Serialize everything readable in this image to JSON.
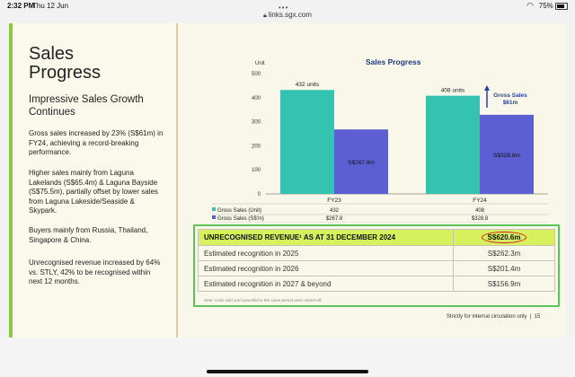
{
  "status": {
    "time": "2:32 PM",
    "date": "Thu 12 Jun",
    "battery": "75%",
    "url": "links.sgx.com"
  },
  "left": {
    "title_line1": "Sales",
    "title_line2": "Progress",
    "subtitle": "Impressive Sales Growth Continues",
    "paragraphs": [
      "Gross sales increased by 23% (S$61m) in FY24, achieving a record-breaking performance.",
      "Higher sales mainly from Laguna Lakelands (S$65.4m) & Laguna Bayside (S$75.5m), partially offset by lower sales from Laguna Lakeside/Seaside & Skypark.",
      "Buyers mainly from Russia, Thailand, Singapore & China.",
      "Unrecognised revenue increased by 64% vs. STLY, 42% to be recognised within next 12 months."
    ]
  },
  "chart_data": {
    "type": "bar",
    "title": "Sales Progress",
    "ylabel": "Unit",
    "ylim": [
      0,
      500
    ],
    "yticks": [
      "0",
      "100",
      "200",
      "300",
      "400",
      "500"
    ],
    "categories": [
      "FY23",
      "FY24"
    ],
    "series": [
      {
        "name": "Gross Sales (Unit)",
        "values": [
          432,
          408
        ],
        "labels": [
          "432 units",
          "408 units"
        ],
        "table": [
          "432",
          "408"
        ],
        "color": "#33c3b0"
      },
      {
        "name": "Gross Sales (S$'m)",
        "values": [
          267.8,
          328.8
        ],
        "labels": [
          "S$267.8m",
          "S$328.8m"
        ],
        "table": [
          "$267.8",
          "$328.8"
        ],
        "color": "#5b5fd1"
      }
    ],
    "annotation": {
      "line1": "Gross Sales",
      "line2": "$61m"
    }
  },
  "revenue": {
    "header_label": "UNRECOGNISED REVENUE¹ AS AT 31 DECEMBER 2024",
    "header_value": "S$620.6m",
    "rows": [
      {
        "label": "Estimated recognition in 2025",
        "value": "S$262.3m"
      },
      {
        "label": "Estimated recognition in 2026",
        "value": "S$201.4m"
      },
      {
        "label": "Estimated recognition in 2027 & beyond",
        "value": "S$156.9m"
      }
    ],
    "note": "Note: Units sold and cancelled in the same period were netted off."
  },
  "footer": {
    "text": "Strictly for internal circulation only",
    "page": "15"
  }
}
